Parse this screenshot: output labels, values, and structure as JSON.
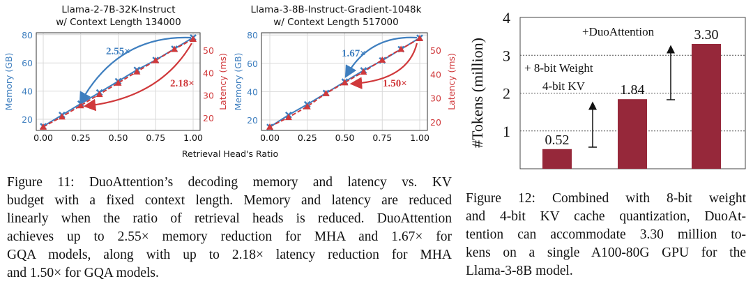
{
  "colors": {
    "memory": "#3f7fbf",
    "latency": "#d0393b",
    "bar": "#96283a",
    "grid": "#d9d9d9"
  },
  "shared_xlabel": "Retrieval Head's Ratio",
  "chart_data": [
    {
      "type": "line",
      "title_line1": "Llama-2-7B-32K-Instruct",
      "title_line2": "w/ Context Length 134000",
      "x": [
        0,
        0.125,
        0.25,
        0.375,
        0.5,
        0.625,
        0.75,
        0.875,
        1.0
      ],
      "xticks": [
        "0.00",
        "0.25",
        "0.50",
        "0.75",
        "1.00"
      ],
      "ylabel_left": "Memory (GB)",
      "yticks_left": [
        "20",
        "40",
        "60",
        "80"
      ],
      "ylabel_right": "Latency (ms)",
      "yticks_right": [
        "20",
        "30",
        "40",
        "50"
      ],
      "series": [
        {
          "name": "Memory",
          "axis": "left",
          "values": [
            15,
            23,
            31,
            39,
            47,
            55,
            62,
            70,
            78
          ]
        },
        {
          "name": "Latency",
          "axis": "right",
          "values": [
            16,
            20.5,
            25.5,
            30.5,
            35.5,
            40.5,
            45.5,
            50.5,
            55
          ]
        }
      ],
      "annotations": {
        "memory": "2.55×",
        "latency": "2.18×"
      }
    },
    {
      "type": "line",
      "title_line1": "Llama-3-8B-Instruct-Gradient-1048k",
      "title_line2": "w/ Context Length 517000",
      "x": [
        0,
        0.125,
        0.25,
        0.375,
        0.5,
        0.625,
        0.75,
        0.875,
        1.0
      ],
      "xticks": [
        "0.00",
        "0.25",
        "0.50",
        "0.75",
        "1.00"
      ],
      "ylabel_left": "Memory (GB)",
      "yticks_left": [
        "20",
        "40",
        "60",
        "80"
      ],
      "ylabel_right": "Latency (ms)",
      "yticks_right": [
        "20",
        "30",
        "40",
        "50"
      ],
      "series": [
        {
          "name": "Memory",
          "axis": "left",
          "values": [
            15,
            23.5,
            31,
            39,
            47,
            55,
            62,
            70,
            78
          ]
        },
        {
          "name": "Latency",
          "axis": "right",
          "values": [
            18,
            22,
            26.5,
            32,
            36.5,
            41,
            46,
            50.5,
            55
          ]
        }
      ],
      "annotations": {
        "memory": "1.67×",
        "latency": "1.50×"
      }
    },
    {
      "type": "bar",
      "ylabel": "#Tokens (million)",
      "yticks": [
        "1",
        "2",
        "3",
        "4"
      ],
      "ylim": [
        0,
        4
      ],
      "values": [
        0.52,
        1.84,
        3.3
      ],
      "labels": [
        "0.52",
        "1.84",
        "3.30"
      ],
      "annotations": {
        "step1_line1": "+ 8-bit Weight",
        "step1_line2": "4-bit KV",
        "step2": "+DuoAttention"
      }
    }
  ],
  "captions": {
    "fig11": [
      "Figure 11: DuoAttention’s decoding memory and latency vs. KV",
      "budget with a fixed context length. Memory and latency are reduced",
      "linearly when the ratio of retrieval heads is reduced. DuoAttention",
      "achieves up to 2.55× memory reduction for MHA and 1.67× for",
      "GQA models, along with up to 2.18× latency reduction for MHA",
      "and 1.50× for GQA models."
    ],
    "fig12": [
      "Figure 12: Combined with 8-bit weight",
      "and 4-bit KV cache quantization, DuoAt-",
      "tention can accommodate 3.30 million to-",
      "kens on a single A100-80G GPU for the",
      "Llama-3-8B model."
    ]
  }
}
